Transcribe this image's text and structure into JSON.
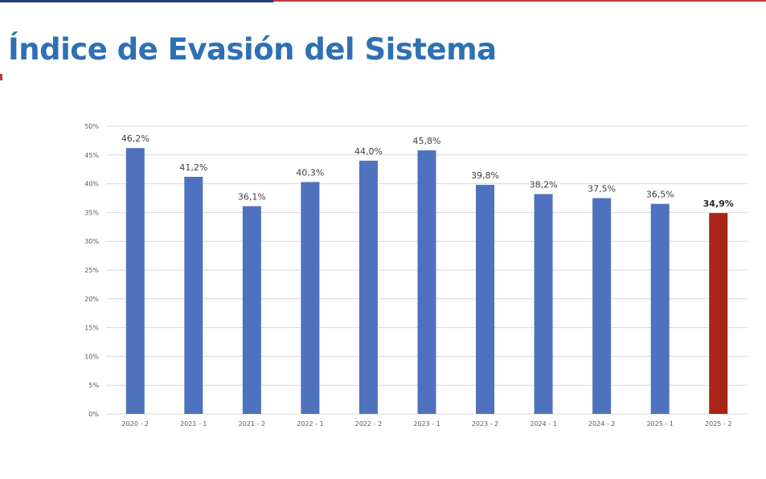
{
  "page": {
    "title": "Índice de Evasión del Sistema"
  },
  "colors": {
    "bar": "#4f72be",
    "highlight_bar": "#ab2418",
    "grid": "#d9d9d9",
    "title": "#2f6fb3"
  },
  "chart_data": {
    "type": "bar",
    "categories": [
      "2020 - 2",
      "2021 - 1",
      "2021 - 2",
      "2022 - 1",
      "2022 - 2",
      "2023 - 1",
      "2023 - 2",
      "2024 - 1",
      "2024 - 2",
      "2025 - 1",
      "2025 - 2"
    ],
    "values": [
      46.2,
      41.2,
      36.1,
      40.3,
      44.0,
      45.8,
      39.8,
      38.2,
      37.5,
      36.5,
      34.9
    ],
    "data_labels": [
      "46,2%",
      "41,2%",
      "36,1%",
      "40,3%",
      "44,0%",
      "45,8%",
      "39,8%",
      "38,2%",
      "37,5%",
      "36,5%",
      "34,9%"
    ],
    "highlight_index": 10,
    "y_ticks": [
      0,
      5,
      10,
      15,
      20,
      25,
      30,
      35,
      40,
      45,
      50
    ],
    "y_tick_labels": [
      "0%",
      "5%",
      "10%",
      "15%",
      "20%",
      "25%",
      "30%",
      "35%",
      "40%",
      "45%",
      "50%"
    ],
    "ylim": [
      0,
      50
    ],
    "grid": true,
    "legend": "none",
    "xlabel": "",
    "ylabel": ""
  }
}
